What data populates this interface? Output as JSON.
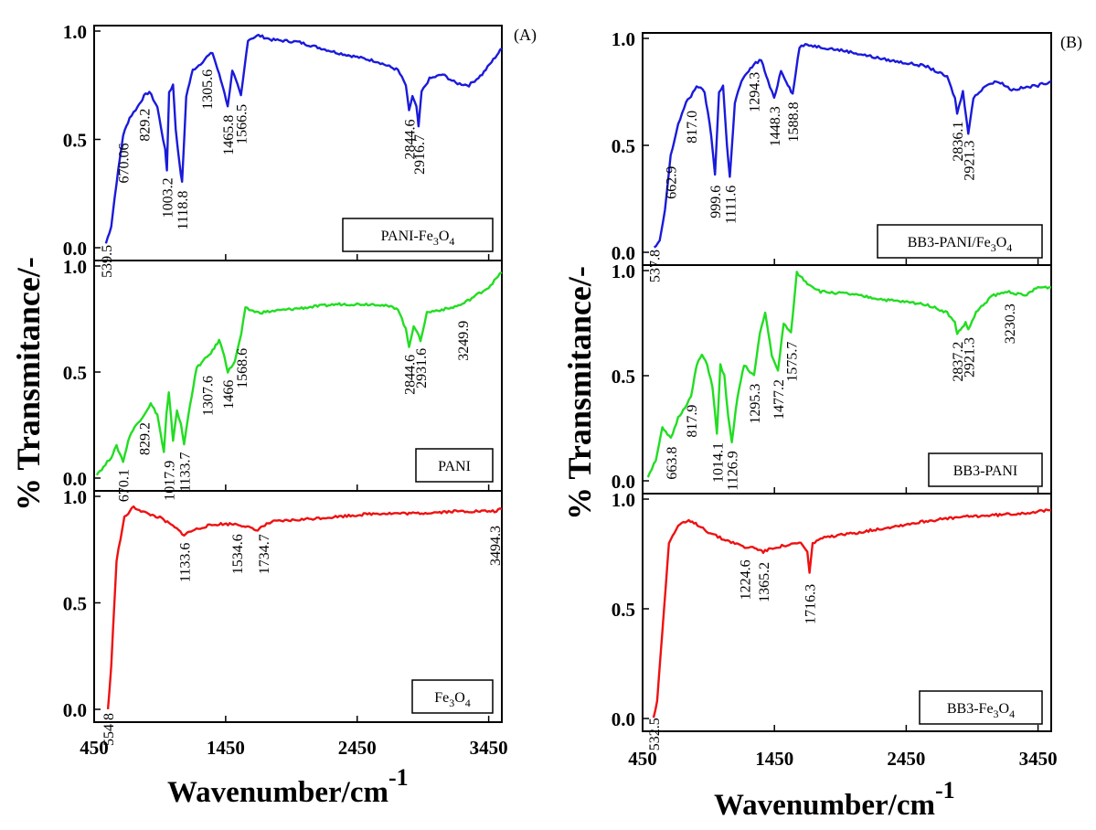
{
  "figure": {
    "y_axis_label": "% Transmitance/-",
    "x_axis_label": "Wavenumber/cm",
    "x_axis_label_exponent": "-1"
  },
  "chart_data": [
    {
      "panel_label": "(A)",
      "type": "line",
      "xlim": [
        450,
        3550
      ],
      "x_ticks": [
        "450",
        "1450",
        "2450",
        "3450"
      ],
      "subplots": [
        {
          "legend": "PANI-Fe3O4",
          "legend_parts": [
            "PANI-Fe",
            "3",
            "O",
            "4"
          ],
          "color": "#1a1adb",
          "ylim": [
            0,
            1
          ],
          "y_ticks": [
            "0.0",
            "0.5",
            "1.0"
          ],
          "x": [
            539.5,
            580,
            620,
            670.06,
            720,
            780,
            829.2,
            870,
            930,
            960,
            990,
            1003.2,
            1020,
            1050,
            1070,
            1100,
            1118.8,
            1150,
            1200,
            1260,
            1305.6,
            1350,
            1400,
            1440,
            1465.8,
            1500,
            1540,
            1566.5,
            1620,
            1700,
            1800,
            2000,
            2300,
            2600,
            2760,
            2820,
            2844.6,
            2870,
            2900,
            2916.7,
            2940,
            3000,
            3100,
            3200,
            3300,
            3400,
            3500,
            3550
          ],
          "y": [
            0.02,
            0.1,
            0.3,
            0.52,
            0.6,
            0.65,
            0.7,
            0.72,
            0.65,
            0.55,
            0.45,
            0.36,
            0.72,
            0.75,
            0.55,
            0.38,
            0.3,
            0.7,
            0.82,
            0.85,
            0.88,
            0.9,
            0.8,
            0.72,
            0.65,
            0.82,
            0.75,
            0.7,
            0.96,
            0.98,
            0.96,
            0.95,
            0.9,
            0.86,
            0.82,
            0.75,
            0.63,
            0.7,
            0.65,
            0.56,
            0.72,
            0.78,
            0.8,
            0.76,
            0.75,
            0.8,
            0.88,
            0.92
          ],
          "annotations": [
            {
              "x": 539.5,
              "y": 0.03,
              "label": "539.5"
            },
            {
              "x": 670.06,
              "y": 0.5,
              "label": "670.06"
            },
            {
              "x": 829.2,
              "y": 0.66,
              "label": "829.2"
            },
            {
              "x": 1003.2,
              "y": 0.34,
              "label": "1003.2"
            },
            {
              "x": 1118.8,
              "y": 0.28,
              "label": "1118.8"
            },
            {
              "x": 1305.6,
              "y": 0.84,
              "label": "1305.6"
            },
            {
              "x": 1465.8,
              "y": 0.63,
              "label": "1465.8"
            },
            {
              "x": 1566.5,
              "y": 0.68,
              "label": "1566.5"
            },
            {
              "x": 2844.6,
              "y": 0.61,
              "label": "2844.6"
            },
            {
              "x": 2916.7,
              "y": 0.54,
              "label": "2916.7"
            }
          ]
        },
        {
          "legend": "PANI",
          "legend_parts": [
            "PANI",
            "",
            "",
            ""
          ],
          "color": "#22dd22",
          "ylim": [
            0,
            1
          ],
          "y_ticks": [
            "0.0",
            "0.5",
            "1.0"
          ],
          "x": [
            470,
            520,
            580,
            620,
            670.1,
            720,
            770,
            829.2,
            880,
            930,
            980,
            1000,
            1017.9,
            1050,
            1080,
            1110,
            1133.7,
            1180,
            1230,
            1307.6,
            1350,
            1400,
            1440,
            1466,
            1520,
            1568.6,
            1600,
            1700,
            2000,
            2300,
            2600,
            2760,
            2820,
            2844.6,
            2880,
            2931.6,
            2980,
            3050,
            3150,
            3249.9,
            3350,
            3450,
            3550
          ],
          "y": [
            0.02,
            0.05,
            0.1,
            0.15,
            0.08,
            0.2,
            0.25,
            0.3,
            0.35,
            0.3,
            0.12,
            0.3,
            0.4,
            0.18,
            0.32,
            0.25,
            0.16,
            0.35,
            0.52,
            0.57,
            0.6,
            0.65,
            0.58,
            0.5,
            0.55,
            0.68,
            0.8,
            0.78,
            0.8,
            0.82,
            0.82,
            0.8,
            0.7,
            0.62,
            0.72,
            0.65,
            0.78,
            0.79,
            0.8,
            0.82,
            0.86,
            0.9,
            0.97
          ],
          "annotations": [
            {
              "x": 670.1,
              "y": 0.06,
              "label": "670.1"
            },
            {
              "x": 829.2,
              "y": 0.28,
              "label": "829.2"
            },
            {
              "x": 1017.9,
              "y": 0.1,
              "label": "1017.9"
            },
            {
              "x": 1133.7,
              "y": 0.14,
              "label": "1133.7"
            },
            {
              "x": 1307.6,
              "y": 0.5,
              "label": "1307.6"
            },
            {
              "x": 1466,
              "y": 0.48,
              "label": "1466"
            },
            {
              "x": 1568.6,
              "y": 0.63,
              "label": "1568.6"
            },
            {
              "x": 2844.6,
              "y": 0.6,
              "label": "2844.6"
            },
            {
              "x": 2931.6,
              "y": 0.63,
              "label": "2931.6"
            },
            {
              "x": 3249.9,
              "y": 0.76,
              "label": "3249.9"
            }
          ]
        },
        {
          "legend": "Fe3O4",
          "legend_parts": [
            "Fe",
            "3",
            "O",
            "4"
          ],
          "color": "#ee1111",
          "ylim": [
            0,
            1
          ],
          "y_ticks": [
            "0.0",
            "0.5",
            "1.0"
          ],
          "x": [
            554.8,
            580,
            620,
            680,
            750,
            850,
            950,
            1050,
            1133.6,
            1200,
            1300,
            1400,
            1534.6,
            1600,
            1680,
            1734.7,
            1800,
            2000,
            2200,
            2400,
            2600,
            2900,
            3200,
            3494.3,
            3550
          ],
          "y": [
            0.0,
            0.2,
            0.7,
            0.9,
            0.95,
            0.92,
            0.9,
            0.86,
            0.82,
            0.84,
            0.86,
            0.87,
            0.87,
            0.86,
            0.84,
            0.86,
            0.88,
            0.89,
            0.9,
            0.91,
            0.92,
            0.92,
            0.93,
            0.93,
            0.94
          ],
          "annotations": [
            {
              "x": 554.8,
              "y": 0.0,
              "label": "554.8"
            },
            {
              "x": 1133.6,
              "y": 0.8,
              "label": "1133.6"
            },
            {
              "x": 1534.6,
              "y": 0.84,
              "label": "1534.6"
            },
            {
              "x": 1734.7,
              "y": 0.84,
              "label": "1734.7"
            },
            {
              "x": 3494.3,
              "y": 0.88,
              "label": "3494.3"
            }
          ]
        }
      ]
    },
    {
      "panel_label": "(B)",
      "type": "line",
      "xlim": [
        450,
        3550
      ],
      "x_ticks": [
        "450",
        "1450",
        "2450",
        "3450"
      ],
      "subplots": [
        {
          "legend": "BB3-PANI/Fe3O4",
          "legend_parts": [
            "BB3-PANI/Fe",
            "3",
            "O",
            "4"
          ],
          "color": "#1a1adb",
          "ylim": [
            0,
            1
          ],
          "y_ticks": [
            "0.0",
            "0.5",
            "1.0"
          ],
          "x": [
            537.8,
            580,
            620,
            662.9,
            720,
            780,
            817,
            860,
            920,
            970,
            999.6,
            1030,
            1060,
            1090,
            1111.6,
            1150,
            1200,
            1294.3,
            1350,
            1400,
            1448.3,
            1500,
            1540,
            1588.8,
            1640,
            1700,
            1800,
            2000,
            2300,
            2600,
            2760,
            2820,
            2836.1,
            2880,
            2921.3,
            2960,
            3050,
            3150,
            3250,
            3350,
            3450,
            3550
          ],
          "y": [
            0.02,
            0.05,
            0.2,
            0.45,
            0.6,
            0.7,
            0.73,
            0.78,
            0.75,
            0.55,
            0.36,
            0.75,
            0.78,
            0.5,
            0.35,
            0.7,
            0.8,
            0.88,
            0.9,
            0.8,
            0.72,
            0.85,
            0.8,
            0.74,
            0.96,
            0.97,
            0.96,
            0.94,
            0.9,
            0.87,
            0.82,
            0.72,
            0.65,
            0.75,
            0.56,
            0.72,
            0.78,
            0.8,
            0.76,
            0.77,
            0.78,
            0.8
          ],
          "annotations": [
            {
              "x": 537.8,
              "y": 0.03,
              "label": "537.8"
            },
            {
              "x": 662.9,
              "y": 0.42,
              "label": "662.9"
            },
            {
              "x": 817,
              "y": 0.68,
              "label": "817.0"
            },
            {
              "x": 999.6,
              "y": 0.33,
              "label": "999.6"
            },
            {
              "x": 1111.6,
              "y": 0.33,
              "label": "1111.6"
            },
            {
              "x": 1294.3,
              "y": 0.86,
              "label": "1294.3"
            },
            {
              "x": 1448.3,
              "y": 0.7,
              "label": "1448.3"
            },
            {
              "x": 1588.8,
              "y": 0.72,
              "label": "1588.8"
            },
            {
              "x": 2836.1,
              "y": 0.63,
              "label": "2836.1"
            },
            {
              "x": 2921.3,
              "y": 0.54,
              "label": "2921.3"
            }
          ]
        },
        {
          "legend": "BB3-PANI",
          "legend_parts": [
            "BB3-PANI",
            "",
            "",
            ""
          ],
          "color": "#22dd22",
          "ylim": [
            0,
            1
          ],
          "y_ticks": [
            "0.0",
            "0.5",
            "1.0"
          ],
          "x": [
            490,
            550,
            600,
            663.8,
            720,
            770,
            817.9,
            860,
            900,
            940,
            980,
            1014.1,
            1040,
            1070,
            1100,
            1126.9,
            1170,
            1220,
            1295.3,
            1340,
            1380,
            1430,
            1477.2,
            1520,
            1575.7,
            1620,
            1700,
            1800,
            2000,
            2300,
            2600,
            2760,
            2820,
            2837.2,
            2900,
            2921.3,
            2980,
            3100,
            3230.3,
            3350,
            3450,
            3550
          ],
          "y": [
            0.02,
            0.1,
            0.25,
            0.2,
            0.3,
            0.35,
            0.4,
            0.55,
            0.6,
            0.55,
            0.45,
            0.22,
            0.55,
            0.5,
            0.3,
            0.18,
            0.4,
            0.55,
            0.5,
            0.7,
            0.8,
            0.6,
            0.52,
            0.75,
            0.7,
            0.99,
            0.94,
            0.9,
            0.89,
            0.86,
            0.84,
            0.8,
            0.75,
            0.7,
            0.75,
            0.72,
            0.8,
            0.88,
            0.9,
            0.88,
            0.92,
            0.92
          ],
          "annotations": [
            {
              "x": 663.8,
              "y": 0.18,
              "label": "663.8"
            },
            {
              "x": 817.9,
              "y": 0.38,
              "label": "817.9"
            },
            {
              "x": 1014.1,
              "y": 0.2,
              "label": "1014.1"
            },
            {
              "x": 1126.9,
              "y": 0.16,
              "label": "1126.9"
            },
            {
              "x": 1295.3,
              "y": 0.48,
              "label": "1295.3"
            },
            {
              "x": 1477.2,
              "y": 0.5,
              "label": "1477.2"
            },
            {
              "x": 1575.7,
              "y": 0.68,
              "label": "1575.7"
            },
            {
              "x": 2837.2,
              "y": 0.68,
              "label": "2837.2"
            },
            {
              "x": 2921.3,
              "y": 0.7,
              "label": "2921.3"
            },
            {
              "x": 3230.3,
              "y": 0.86,
              "label": "3230.3"
            }
          ]
        },
        {
          "legend": "BB3-Fe3O4",
          "legend_parts": [
            "BB3-Fe",
            "3",
            "O",
            "4"
          ],
          "color": "#ee1111",
          "ylim": [
            0,
            1
          ],
          "y_ticks": [
            "0.0",
            "0.5",
            "1.0"
          ],
          "x": [
            532.5,
            560,
            600,
            650,
            720,
            800,
            880,
            950,
            1050,
            1150,
            1224.6,
            1300,
            1365.2,
            1450,
            1550,
            1650,
            1700,
            1716.3,
            1740,
            1800,
            2000,
            2300,
            2600,
            2900,
            3200,
            3400,
            3550
          ],
          "y": [
            0.0,
            0.08,
            0.4,
            0.8,
            0.88,
            0.9,
            0.88,
            0.85,
            0.82,
            0.8,
            0.78,
            0.78,
            0.76,
            0.78,
            0.79,
            0.8,
            0.76,
            0.66,
            0.8,
            0.82,
            0.84,
            0.87,
            0.9,
            0.92,
            0.93,
            0.94,
            0.95
          ],
          "annotations": [
            {
              "x": 532.5,
              "y": 0.02,
              "label": "532.5"
            },
            {
              "x": 1224.6,
              "y": 0.74,
              "label": "1224.6"
            },
            {
              "x": 1365.2,
              "y": 0.73,
              "label": "1365.2"
            },
            {
              "x": 1716.3,
              "y": 0.63,
              "label": "1716.3"
            }
          ]
        }
      ]
    }
  ]
}
